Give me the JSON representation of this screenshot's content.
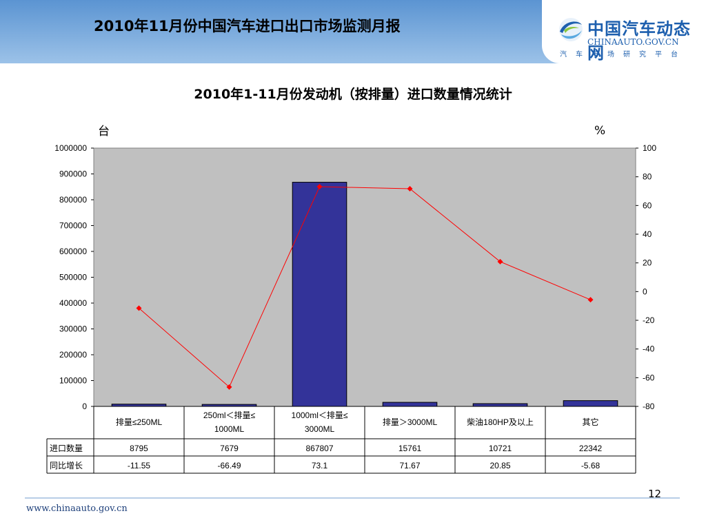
{
  "header": {
    "title": "2010年11月份中国汽车进口出口市场监测月报",
    "logo_cn": "中国汽车动态网",
    "logo_en": "CHINAAUTO.GOV.CN",
    "logo_sub": "汽车市场研究平台"
  },
  "colors": {
    "bar": "#333399",
    "line": "#ff0000",
    "plot_bg": "#c0c0c0"
  },
  "chart_data": {
    "type": "bar",
    "title": "2010年1-11月份发动机（按排量）进口数量情况统计",
    "y_unit_left": "台",
    "y_unit_right": "%",
    "categories": [
      "排量≤250ML",
      "250ml＜排量≤1000ML",
      "1000ml＜排量≤3000ML",
      "排量＞3000ML",
      "柴油180HP及以上",
      "其它"
    ],
    "ylim": [
      0,
      1000000
    ],
    "y_ticks": [
      0,
      100000,
      200000,
      300000,
      400000,
      500000,
      600000,
      700000,
      800000,
      900000,
      1000000
    ],
    "y2lim": [
      -80,
      100
    ],
    "y2_ticks": [
      -80,
      -60,
      -40,
      -20,
      0,
      20,
      40,
      60,
      80,
      100
    ],
    "grid": false,
    "series": [
      {
        "name": "进口数量",
        "type": "bar",
        "axis": "left",
        "values": [
          8795,
          7679,
          867807,
          15761,
          10721,
          22342
        ]
      },
      {
        "name": "同比增长",
        "type": "line",
        "axis": "right",
        "values": [
          -11.55,
          -66.49,
          73.1,
          71.67,
          20.85,
          -5.68
        ]
      }
    ],
    "table_rows": [
      {
        "label": "进口数量",
        "values": [
          "8795",
          "7679",
          "867807",
          "15761",
          "10721",
          "22342"
        ]
      },
      {
        "label": "同比增长",
        "values": [
          "-11.55",
          "-66.49",
          "73.1",
          "71.67",
          "20.85",
          "-5.68"
        ]
      }
    ]
  },
  "footer": {
    "url": "www.chinaauto.gov.cn",
    "page_number": "12"
  }
}
